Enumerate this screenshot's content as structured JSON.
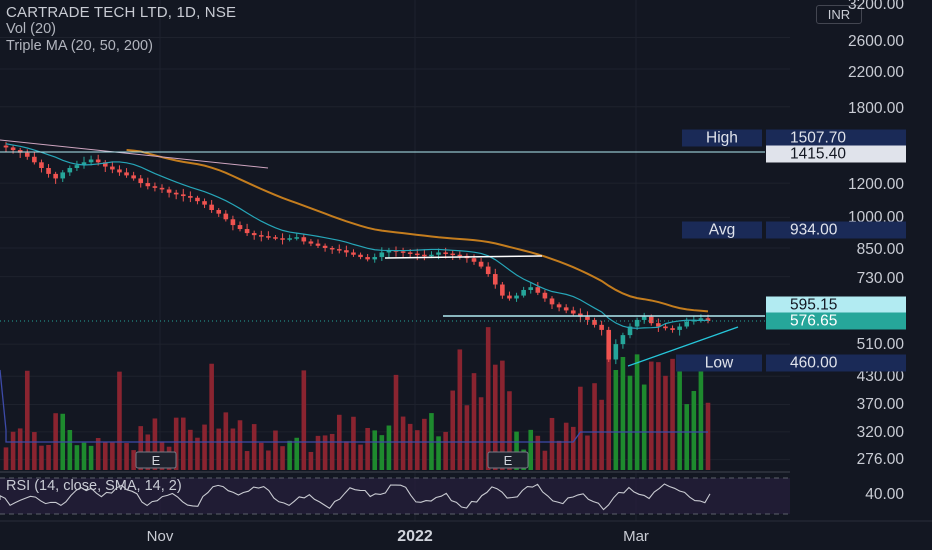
{
  "legend": {
    "title": "CARTRADE TECH LTD, 1D, NSE",
    "vol": "Vol (20)",
    "ma": "Triple MA (20, 50, 200)"
  },
  "currency": "INR",
  "y_axis": {
    "labels": [
      "3200.00",
      "2600.00",
      "2200.00",
      "1800.00",
      "1200.00",
      "1000.00",
      "850.00",
      "730.00",
      "510.00",
      "430.00",
      "370.00",
      "320.00",
      "276.00"
    ]
  },
  "tags": {
    "high_label": "High",
    "high_value": "1507.70",
    "line_value": "1415.40",
    "avg_label": "Avg",
    "avg_value": "934.00",
    "price_top": "595.15",
    "price_last": "576.65",
    "low_label": "Low",
    "low_value": "460.00"
  },
  "earnings_marker": "E",
  "x_axis": {
    "labels": [
      "Nov",
      "2022",
      "Mar"
    ]
  },
  "rsi": {
    "label": "RSI (14, close, SMA, 14, 2)",
    "value": "40.00"
  },
  "colors": {
    "background": "#131722",
    "up": "#26a69a",
    "down": "#ef5350",
    "ma20": "#26c6da",
    "ma50": "#f0a030",
    "accent_tag": "#1a2a57"
  },
  "chart_data": {
    "type": "candlestick",
    "title": "CARTRADE TECH LTD, 1D, NSE",
    "currency": "INR",
    "scale": "log",
    "x_ticks": [
      "Nov",
      "2022",
      "Mar"
    ],
    "y_ticks": [
      3200,
      2600,
      2200,
      1800,
      1200,
      1000,
      850,
      730,
      510,
      430,
      370,
      320,
      276
    ],
    "close_series_approx": [
      1450,
      1430,
      1410,
      1380,
      1340,
      1300,
      1260,
      1230,
      1270,
      1300,
      1320,
      1340,
      1360,
      1340,
      1310,
      1290,
      1270,
      1250,
      1230,
      1200,
      1180,
      1170,
      1160,
      1140,
      1130,
      1120,
      1110,
      1090,
      1070,
      1040,
      1020,
      990,
      960,
      940,
      920,
      910,
      905,
      900,
      895,
      890,
      895,
      900,
      880,
      870,
      860,
      850,
      845,
      840,
      830,
      820,
      810,
      800,
      810,
      830,
      840,
      835,
      830,
      825,
      820,
      815,
      820,
      830,
      825,
      820,
      815,
      805,
      790,
      770,
      740,
      700,
      660,
      650,
      660,
      680,
      690,
      670,
      650,
      630,
      620,
      610,
      600,
      590,
      580,
      565,
      550,
      470,
      510,
      535,
      560,
      580,
      590,
      570,
      560,
      555,
      550,
      560,
      575,
      580,
      585,
      576.65
    ],
    "levels": {
      "high": 1507.7,
      "line": 1415.4,
      "avg": 934.0,
      "low": 460.0,
      "last": 576.65,
      "top_tag": 595.15
    },
    "moving_averages": [
      "MA 20",
      "MA 50",
      "MA 200"
    ],
    "rsi_level": 40.0
  }
}
